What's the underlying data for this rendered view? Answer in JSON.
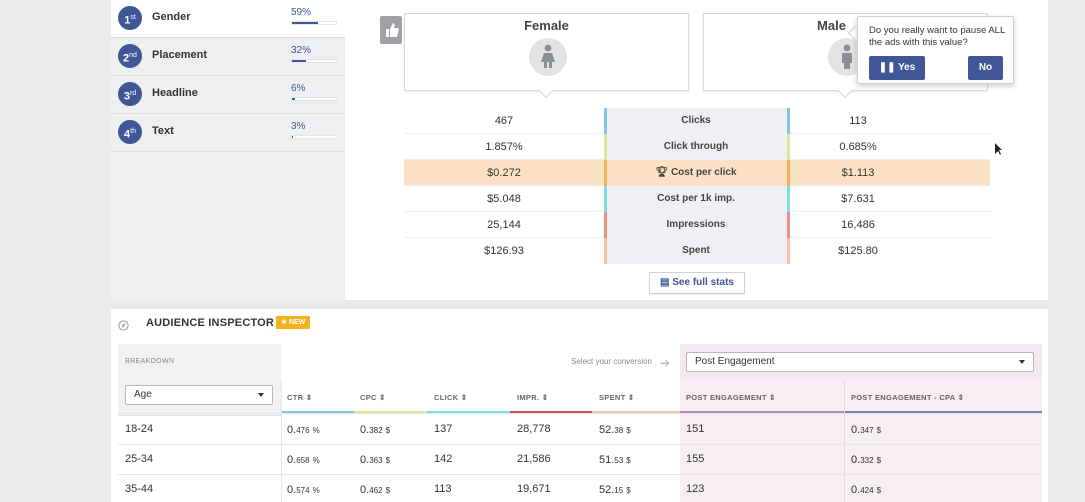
{
  "ranking": [
    {
      "rank": "1",
      "sup": "st",
      "label": "Gender",
      "pct": "59%",
      "fill": 0.59
    },
    {
      "rank": "2",
      "sup": "nd",
      "label": "Placement",
      "pct": "32%",
      "fill": 0.32
    },
    {
      "rank": "3",
      "sup": "rd",
      "label": "Headline",
      "pct": "6%",
      "fill": 0.06
    },
    {
      "rank": "4",
      "sup": "th",
      "label": "Text",
      "pct": "3%",
      "fill": 0.03
    }
  ],
  "compare": {
    "left_title": "Female",
    "right_title": "Male",
    "rows": [
      {
        "left": "467",
        "metric": "Clicks",
        "right": "113"
      },
      {
        "left": "1.857%",
        "metric": "Click through",
        "right": "0.685%"
      },
      {
        "left": "$0.272",
        "metric": "Cost per click",
        "right": "$1.113"
      },
      {
        "left": "$5.048",
        "metric": "Cost per 1k imp.",
        "right": "$7.631"
      },
      {
        "left": "25,144",
        "metric": "Impressions",
        "right": "16,486"
      },
      {
        "left": "$126.93",
        "metric": "Spent",
        "right": "$125.80"
      }
    ],
    "see_full": "See full stats"
  },
  "popup": {
    "question": "Do you really want to pause ALL the ads with this value?",
    "yes": "Yes",
    "no": "No"
  },
  "audience": {
    "title": "AUDIENCE INSPECTOR",
    "new_badge": "NEW",
    "breakdown_label": "BREAKDOWN",
    "breakdown_value": "Age",
    "conversion_label": "Select your conversion",
    "conversion_value": "Post Engagement",
    "headers": [
      "CTR",
      "CPC",
      "CLICK",
      "IMPR.",
      "SPENT",
      "POST ENGAGEMENT",
      "POST ENGAGEMENT - CPA"
    ],
    "rows": [
      {
        "age": "18-24",
        "ctr_a": "0.",
        "ctr_b": "476",
        "ctr_u": "%",
        "cpc_a": "0.",
        "cpc_b": "382",
        "cpc_u": "$",
        "click": "137",
        "impr": "28,778",
        "sp_a": "52.",
        "sp_b": "38",
        "sp_u": "$",
        "pe": "151",
        "cpa_a": "0.",
        "cpa_b": "347",
        "cpa_u": "$"
      },
      {
        "age": "25-34",
        "ctr_a": "0.",
        "ctr_b": "658",
        "ctr_u": "%",
        "cpc_a": "0.",
        "cpc_b": "363",
        "cpc_u": "$",
        "click": "142",
        "impr": "21,586",
        "sp_a": "51.",
        "sp_b": "53",
        "sp_u": "$",
        "pe": "155",
        "cpa_a": "0.",
        "cpa_b": "332",
        "cpa_u": "$"
      },
      {
        "age": "35-44",
        "ctr_a": "0.",
        "ctr_b": "574",
        "ctr_u": "%",
        "cpc_a": "0.",
        "cpc_b": "462",
        "cpc_u": "$",
        "click": "113",
        "impr": "19,671",
        "sp_a": "52.",
        "sp_b": "15",
        "sp_u": "$",
        "pe": "123",
        "cpa_a": "0.",
        "cpa_b": "424",
        "cpa_u": "$"
      }
    ]
  },
  "colors": {
    "accent": "#3f5795",
    "highlight": "#fbe2c5",
    "badge": "#f2b31c"
  }
}
